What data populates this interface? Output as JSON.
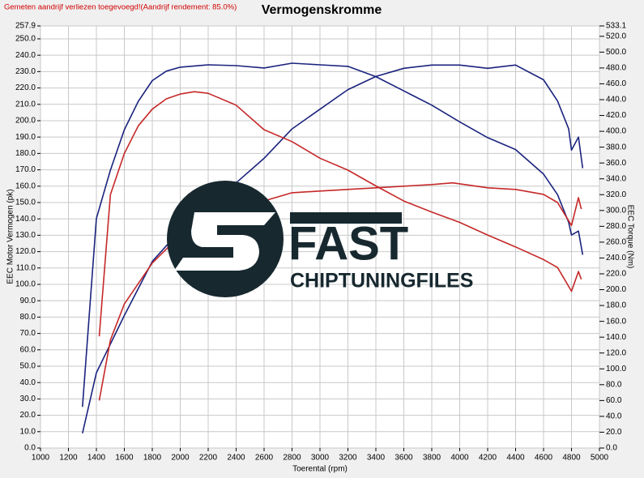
{
  "chart_data": {
    "type": "line",
    "title": "Vermogenskromme",
    "note": "Gemeten aandrijf verliezen toegevoegd!(Aandrijf rendement: 85.0%)",
    "xlabel": "Toerental (rpm)",
    "ylabel": "EEC Motor Vermogen (pk)",
    "y2label": "EEC Torque (Nm)",
    "grid": true,
    "xlim": [
      1000,
      5000
    ],
    "xticks": [
      1000,
      1200,
      1400,
      1600,
      1800,
      2000,
      2200,
      2400,
      2600,
      2800,
      3000,
      3200,
      3400,
      3600,
      3800,
      4000,
      4200,
      4400,
      4600,
      4800,
      5000
    ],
    "ylim": [
      0,
      257.9
    ],
    "yticks": [
      {
        "value": 0,
        "label": "0.0"
      },
      {
        "value": 10,
        "label": "10.0"
      },
      {
        "value": 20,
        "label": "20.0"
      },
      {
        "value": 30,
        "label": "30.0"
      },
      {
        "value": 40,
        "label": "40.0"
      },
      {
        "value": 50,
        "label": "50.0"
      },
      {
        "value": 60,
        "label": "60.0"
      },
      {
        "value": 70,
        "label": "70.0"
      },
      {
        "value": 80,
        "label": "80.0"
      },
      {
        "value": 90,
        "label": "90.0"
      },
      {
        "value": 100,
        "label": "100.0"
      },
      {
        "value": 110,
        "label": "110.0"
      },
      {
        "value": 120,
        "label": "120.0"
      },
      {
        "value": 130,
        "label": "130.0"
      },
      {
        "value": 140,
        "label": "140.0"
      },
      {
        "value": 150,
        "label": "150.0"
      },
      {
        "value": 160,
        "label": "160.0"
      },
      {
        "value": 170,
        "label": "170.0"
      },
      {
        "value": 180,
        "label": "180.0"
      },
      {
        "value": 190,
        "label": "190.0"
      },
      {
        "value": 200,
        "label": "200.0"
      },
      {
        "value": 210,
        "label": "210.0"
      },
      {
        "value": 220,
        "label": "220.0"
      },
      {
        "value": 230,
        "label": "230.0"
      },
      {
        "value": 240,
        "label": "240.0"
      },
      {
        "value": 250,
        "label": "250.0"
      },
      257.9
    ],
    "y2lim": [
      0,
      533.1
    ],
    "y2ticks": [
      {
        "value": 0,
        "label": "0.0"
      },
      {
        "value": 20,
        "label": "20.0"
      },
      {
        "value": 40,
        "label": "40.0"
      },
      {
        "value": 60,
        "label": "60.0"
      },
      {
        "value": 80,
        "label": "80.0"
      },
      {
        "value": 100,
        "label": "100.0"
      },
      {
        "value": 120,
        "label": "120.0"
      },
      {
        "value": 140,
        "label": "140.0"
      },
      {
        "value": 160,
        "label": "160.0"
      },
      {
        "value": 180,
        "label": "180.0"
      },
      {
        "value": 200,
        "label": "200.0"
      },
      {
        "value": 220,
        "label": "220.0"
      },
      {
        "value": 240,
        "label": "240.0"
      },
      {
        "value": 260,
        "label": "260.0"
      },
      {
        "value": 280,
        "label": "280.0"
      },
      {
        "value": 300,
        "label": "300.0"
      },
      {
        "value": 320,
        "label": "320.0"
      },
      {
        "value": 340,
        "label": "340.0"
      },
      {
        "value": 360,
        "label": "360.0"
      },
      {
        "value": 380,
        "label": "380.0"
      },
      {
        "value": 400,
        "label": "400.0"
      },
      {
        "value": 420,
        "label": "420.0"
      },
      {
        "value": 440,
        "label": "440.0"
      },
      {
        "value": 460,
        "label": "460.0"
      },
      {
        "value": 480,
        "label": "480.0"
      },
      {
        "value": 500,
        "label": "500.0"
      },
      {
        "value": 520,
        "label": "520.0"
      },
      533.1
    ],
    "series": [
      {
        "color": "#1a237e",
        "axis": "y2",
        "x": [
          1300,
          1400,
          1500,
          1600,
          1700,
          1800,
          1900,
          2000,
          2200,
          2400,
          2600,
          2800,
          3000,
          3200,
          3400,
          3600,
          3800,
          4000,
          4200,
          4400,
          4600,
          4700,
          4780,
          4800,
          4850,
          4880
        ],
        "values": [
          52,
          290,
          351,
          402,
          438,
          464,
          476,
          481,
          484,
          483,
          480,
          486,
          484,
          482,
          469,
          451,
          433,
          412,
          392,
          377,
          346,
          320,
          285,
          269,
          274,
          244
        ]
      },
      {
        "color": "#1a237e",
        "axis": "y",
        "x": [
          1300,
          1400,
          1600,
          1800,
          2000,
          2200,
          2400,
          2600,
          2800,
          3000,
          3200,
          3400,
          3600,
          3800,
          4000,
          4200,
          4400,
          4600,
          4700,
          4780,
          4800,
          4850,
          4880
        ],
        "values": [
          9,
          46,
          81,
          114,
          133,
          150,
          162,
          177,
          195,
          207,
          219,
          227,
          232,
          234,
          234,
          232,
          234,
          225,
          212,
          195,
          182,
          190,
          171
        ]
      },
      {
        "color": "#c62828",
        "axis": "y2",
        "x": [
          1420,
          1500,
          1600,
          1700,
          1800,
          1900,
          2000,
          2100,
          2200,
          2400,
          2600,
          2800,
          3000,
          3200,
          3400,
          3600,
          3800,
          4000,
          4200,
          4400,
          4600,
          4700,
          4800,
          4850,
          4870
        ],
        "values": [
          141,
          320,
          372,
          407,
          428,
          441,
          447,
          450,
          448,
          433,
          402,
          387,
          366,
          351,
          331,
          312,
          298,
          285,
          269,
          254,
          238,
          228,
          198,
          223,
          213
        ]
      },
      {
        "color": "#c62828",
        "axis": "y",
        "x": [
          1420,
          1500,
          1600,
          1800,
          2000,
          2200,
          2400,
          2600,
          2800,
          3000,
          3200,
          3400,
          3600,
          3800,
          3950,
          4200,
          4400,
          4600,
          4700,
          4800,
          4850,
          4870
        ],
        "values": [
          29,
          66,
          88,
          113,
          130,
          145,
          150,
          151,
          156,
          157,
          158,
          159,
          160,
          161,
          162,
          159,
          158,
          155,
          150,
          136,
          153,
          146
        ]
      }
    ]
  },
  "watermark": {
    "brand": "FAST",
    "tagline": "CHIPTUNINGFILES"
  }
}
